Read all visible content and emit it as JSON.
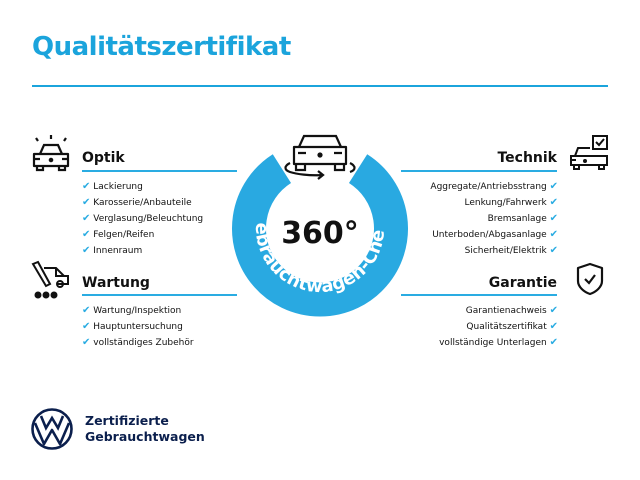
{
  "title": "Qualitätszertifikat",
  "colors": {
    "accent": "#1ba4dc",
    "ring": "#29a9e1",
    "brand_navy": "#0b1f4d"
  },
  "center": {
    "degrees": "360°",
    "ring_text": "Gebrauchtwagen-Check"
  },
  "sections": {
    "optik": {
      "heading": "Optik",
      "icon": "car-lights-icon",
      "items": [
        "Lackierung",
        "Karosserie/Anbauteile",
        "Verglasung/Beleuchtung",
        "Felgen/Reifen",
        "Innenraum"
      ]
    },
    "wartung": {
      "heading": "Wartung",
      "icon": "service-tools-icon",
      "items": [
        "Wartung/Inspektion",
        "Hauptuntersuchung",
        "vollständiges Zubehör"
      ]
    },
    "technik": {
      "heading": "Technik",
      "icon": "car-checkbox-icon",
      "items": [
        "Aggregate/Antriebsstrang",
        "Lenkung/Fahrwerk",
        "Bremsanlage",
        "Unterboden/Abgasanlage",
        "Sicherheit/Elektrik"
      ]
    },
    "garantie": {
      "heading": "Garantie",
      "icon": "shield-check-icon",
      "items": [
        "Garantienachweis",
        "Qualitätszertifikat",
        "vollständige Unterlagen"
      ]
    }
  },
  "check_glyph": "✔",
  "brand": {
    "line1": "Zertifizierte",
    "line2": "Gebrauchtwagen"
  }
}
